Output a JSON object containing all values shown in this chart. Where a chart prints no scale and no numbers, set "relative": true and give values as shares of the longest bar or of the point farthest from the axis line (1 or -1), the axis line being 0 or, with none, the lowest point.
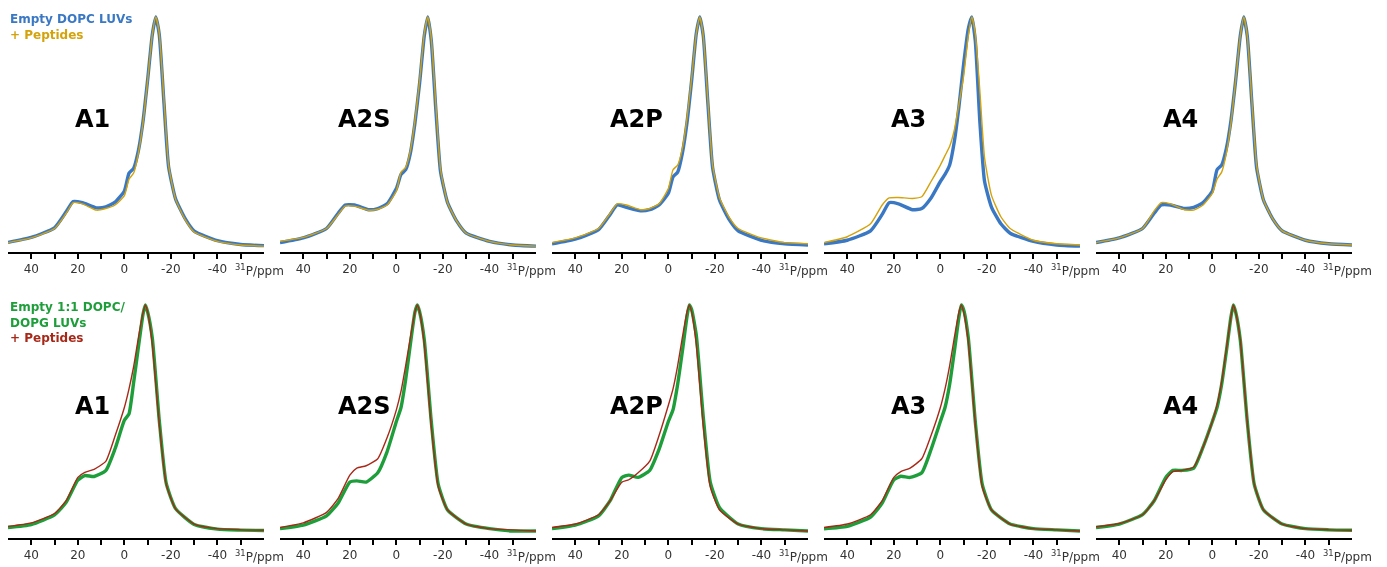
{
  "chart_data": [
    {
      "type": "line",
      "relative": true,
      "title": "A1",
      "xlabel": "$^{31}$P/ppm",
      "legend": "top left",
      "tick_labels": "x",
      "xlim": [
        50,
        -60
      ],
      "xticks": [
        40,
        {
          "value": 30,
          "label": null
        },
        20,
        {
          "value": 10,
          "label": null
        },
        0,
        {
          "value": -10,
          "label": null
        },
        -20,
        {
          "value": -30,
          "label": null
        },
        -40,
        {
          "value": -50,
          "label": null
        }
      ],
      "x": [
        50,
        40,
        30,
        25,
        22,
        18,
        12,
        8,
        4,
        0,
        -2,
        -4,
        -6,
        -8,
        -10,
        -12,
        -13.5,
        -15,
        -17,
        -19,
        -22,
        -26,
        -30,
        -40,
        -50,
        -60
      ],
      "series": [
        {
          "name": "Empty DOPC LUVs",
          "color": "#3a78c4",
          "values": [
            0.041,
            0.062,
            0.103,
            0.171,
            0.215,
            0.21,
            0.188,
            0.192,
            0.212,
            0.26,
            0.336,
            0.356,
            0.43,
            0.555,
            0.733,
            0.925,
            1.0,
            0.925,
            0.637,
            0.363,
            0.226,
            0.144,
            0.089,
            0.048,
            0.032,
            0.027
          ]
        },
        {
          "name": "+ Peptides",
          "color": "#d4a20a",
          "values": [
            0.04,
            0.06,
            0.1,
            0.165,
            0.21,
            0.205,
            0.178,
            0.185,
            0.2,
            0.24,
            0.31,
            0.336,
            0.42,
            0.55,
            0.73,
            0.925,
            1.0,
            0.93,
            0.65,
            0.37,
            0.225,
            0.14,
            0.085,
            0.045,
            0.03,
            0.025
          ]
        }
      ]
    },
    {
      "type": "line",
      "relative": true,
      "title": "A2S",
      "xlabel": "$^{31}$P/ppm",
      "tick_labels": "x",
      "xlim": [
        50,
        -60
      ],
      "xticks": [
        40,
        {
          "value": 30,
          "label": null
        },
        20,
        {
          "value": 10,
          "label": null
        },
        0,
        {
          "value": -10,
          "label": null
        },
        -20,
        {
          "value": -30,
          "label": null
        },
        -40,
        {
          "value": -50,
          "label": null
        }
      ],
      "x": [
        50,
        40,
        30,
        25,
        22,
        18,
        12,
        8,
        4,
        0,
        -2,
        -4,
        -6,
        -8,
        -10,
        -12,
        -13.5,
        -15,
        -17,
        -19,
        -22,
        -26,
        -30,
        -40,
        -50,
        -60
      ],
      "series": [
        {
          "color": "#3a78c4",
          "values": [
            0.04,
            0.06,
            0.1,
            0.165,
            0.2,
            0.2,
            0.18,
            0.185,
            0.205,
            0.27,
            0.33,
            0.35,
            0.42,
            0.55,
            0.72,
            0.92,
            1.0,
            0.9,
            0.6,
            0.34,
            0.21,
            0.13,
            0.08,
            0.045,
            0.03,
            0.025
          ]
        },
        {
          "color": "#d4a20a",
          "values": [
            0.045,
            0.062,
            0.1,
            0.16,
            0.195,
            0.195,
            0.178,
            0.182,
            0.2,
            0.26,
            0.34,
            0.36,
            0.43,
            0.56,
            0.73,
            0.93,
            1.0,
            0.91,
            0.62,
            0.35,
            0.21,
            0.13,
            0.08,
            0.045,
            0.03,
            0.025
          ]
        }
      ]
    },
    {
      "type": "line",
      "relative": true,
      "title": "A2P",
      "xlabel": "$^{31}$P/ppm",
      "tick_labels": "x",
      "xlim": [
        50,
        -60
      ],
      "xticks": [
        40,
        {
          "value": 30,
          "label": null
        },
        20,
        {
          "value": 10,
          "label": null
        },
        0,
        {
          "value": -10,
          "label": null
        },
        -20,
        {
          "value": -30,
          "label": null
        },
        -40,
        {
          "value": -50,
          "label": null
        }
      ],
      "x": [
        50,
        40,
        30,
        25,
        22,
        18,
        12,
        8,
        4,
        0,
        -2,
        -4,
        -6,
        -8,
        -10,
        -12,
        -13.5,
        -15,
        -17,
        -19,
        -22,
        -26,
        -30,
        -40,
        -50,
        -60
      ],
      "series": [
        {
          "color": "#3a78c4",
          "values": [
            0.035,
            0.055,
            0.095,
            0.16,
            0.2,
            0.19,
            0.175,
            0.18,
            0.2,
            0.25,
            0.32,
            0.34,
            0.42,
            0.55,
            0.73,
            0.93,
            1.0,
            0.92,
            0.63,
            0.36,
            0.22,
            0.14,
            0.09,
            0.05,
            0.035,
            0.03
          ]
        },
        {
          "color": "#d4a20a",
          "values": [
            0.04,
            0.06,
            0.1,
            0.165,
            0.205,
            0.2,
            0.18,
            0.185,
            0.205,
            0.27,
            0.35,
            0.37,
            0.44,
            0.57,
            0.74,
            0.93,
            1.0,
            0.92,
            0.64,
            0.37,
            0.23,
            0.15,
            0.1,
            0.06,
            0.04,
            0.035
          ]
        }
      ]
    },
    {
      "type": "line",
      "relative": true,
      "title": "A3",
      "xlabel": "$^{31}$P/ppm",
      "tick_labels": "x",
      "xlim": [
        50,
        -60
      ],
      "xticks": [
        40,
        {
          "value": 30,
          "label": null
        },
        20,
        {
          "value": 10,
          "label": null
        },
        0,
        {
          "value": -10,
          "label": null
        },
        -20,
        {
          "value": -30,
          "label": null
        },
        -40,
        {
          "value": -50,
          "label": null
        }
      ],
      "x": [
        50,
        40,
        30,
        25,
        22,
        18,
        12,
        8,
        4,
        0,
        -2,
        -4,
        -6,
        -8,
        -10,
        -12,
        -13.5,
        -15,
        -17,
        -19,
        -22,
        -26,
        -30,
        -40,
        -50,
        -60
      ],
      "series": [
        {
          "color": "#3a78c4",
          "values": [
            0.035,
            0.05,
            0.09,
            0.16,
            0.21,
            0.205,
            0.18,
            0.185,
            0.23,
            0.3,
            0.33,
            0.37,
            0.47,
            0.62,
            0.8,
            0.95,
            1.0,
            0.9,
            0.55,
            0.3,
            0.19,
            0.12,
            0.08,
            0.045,
            0.03,
            0.025
          ]
        },
        {
          "color": "#d4a20a",
          "values": [
            0.04,
            0.065,
            0.12,
            0.2,
            0.23,
            0.232,
            0.228,
            0.235,
            0.3,
            0.37,
            0.41,
            0.45,
            0.52,
            0.63,
            0.75,
            0.92,
            1.0,
            0.93,
            0.68,
            0.4,
            0.24,
            0.15,
            0.1,
            0.05,
            0.035,
            0.03
          ]
        }
      ]
    },
    {
      "type": "line",
      "relative": true,
      "title": "A4",
      "xlabel": "$^{31}$P/ppm",
      "tick_labels": "x",
      "xlim": [
        50,
        -60
      ],
      "xticks": [
        40,
        {
          "value": 30,
          "label": null
        },
        20,
        {
          "value": 10,
          "label": null
        },
        0,
        {
          "value": -10,
          "label": null
        },
        -20,
        {
          "value": -30,
          "label": null
        },
        -40,
        {
          "value": -50,
          "label": null
        }
      ],
      "x": [
        50,
        40,
        30,
        25,
        22,
        18,
        12,
        8,
        4,
        0,
        -2,
        -4,
        -6,
        -8,
        -10,
        -12,
        -13.5,
        -15,
        -17,
        -19,
        -22,
        -26,
        -30,
        -40,
        -50,
        -60
      ],
      "series": [
        {
          "color": "#3a78c4",
          "values": [
            0.04,
            0.06,
            0.1,
            0.165,
            0.2,
            0.2,
            0.185,
            0.19,
            0.21,
            0.26,
            0.35,
            0.37,
            0.44,
            0.56,
            0.73,
            0.92,
            1.0,
            0.92,
            0.63,
            0.36,
            0.22,
            0.14,
            0.09,
            0.05,
            0.035,
            0.03
          ]
        },
        {
          "color": "#d4a20a",
          "values": [
            0.04,
            0.06,
            0.1,
            0.175,
            0.21,
            0.205,
            0.18,
            0.178,
            0.2,
            0.25,
            0.31,
            0.34,
            0.42,
            0.55,
            0.73,
            0.92,
            1.0,
            0.92,
            0.64,
            0.37,
            0.22,
            0.14,
            0.09,
            0.05,
            0.035,
            0.03
          ]
        }
      ]
    },
    {
      "type": "line",
      "relative": true,
      "title": "A1",
      "xlabel": "$^{31}$P/ppm",
      "legend": "top left",
      "tick_labels": "x",
      "xlim": [
        50,
        -60
      ],
      "xticks": [
        40,
        {
          "value": 30,
          "label": null
        },
        20,
        {
          "value": 10,
          "label": null
        },
        0,
        {
          "value": -10,
          "label": null
        },
        -20,
        {
          "value": -30,
          "label": null
        },
        -40,
        {
          "value": -50,
          "label": null
        }
      ],
      "x": [
        50,
        40,
        30,
        25,
        20,
        17,
        13,
        8,
        4,
        0,
        -2,
        -4,
        -6,
        -8,
        -9,
        -10,
        -12,
        -15,
        -18,
        -22,
        -30,
        -40,
        -50,
        -60
      ],
      "series": [
        {
          "name": "Empty 1:1 DOPC/DOPG LUVs",
          "color": "#1e9e3a",
          "values": [
            0.045,
            0.058,
            0.099,
            0.153,
            0.248,
            0.268,
            0.264,
            0.289,
            0.383,
            0.505,
            0.533,
            0.668,
            0.817,
            0.96,
            1.0,
            0.97,
            0.858,
            0.505,
            0.234,
            0.126,
            0.058,
            0.038,
            0.034,
            0.032
          ]
        },
        {
          "name": "+ Peptides",
          "color": "#a82818",
          "values": [
            0.05,
            0.065,
            0.105,
            0.16,
            0.26,
            0.282,
            0.295,
            0.329,
            0.438,
            0.56,
            0.64,
            0.736,
            0.858,
            0.966,
            1.0,
            0.97,
            0.83,
            0.49,
            0.23,
            0.125,
            0.06,
            0.04,
            0.035,
            0.033
          ]
        }
      ]
    },
    {
      "type": "line",
      "relative": true,
      "title": "A2S",
      "xlabel": "$^{31}$P/ppm",
      "tick_labels": "x",
      "xlim": [
        50,
        -60
      ],
      "xticks": [
        40,
        {
          "value": 30,
          "label": null
        },
        20,
        {
          "value": 10,
          "label": null
        },
        0,
        {
          "value": -10,
          "label": null
        },
        -20,
        {
          "value": -30,
          "label": null
        },
        -40,
        {
          "value": -50,
          "label": null
        }
      ],
      "x": [
        50,
        40,
        30,
        25,
        20,
        17,
        13,
        8,
        4,
        0,
        -2,
        -4,
        -6,
        -8,
        -9,
        -10,
        -12,
        -15,
        -18,
        -22,
        -30,
        -40,
        -50,
        -60
      ],
      "series": [
        {
          "color": "#1e9e3a",
          "values": [
            0.04,
            0.055,
            0.095,
            0.15,
            0.24,
            0.245,
            0.24,
            0.28,
            0.37,
            0.5,
            0.56,
            0.68,
            0.83,
            0.97,
            1.0,
            0.97,
            0.85,
            0.5,
            0.23,
            0.12,
            0.06,
            0.04,
            0.03,
            0.03
          ]
        },
        {
          "color": "#a82818",
          "values": [
            0.045,
            0.065,
            0.11,
            0.17,
            0.27,
            0.3,
            0.31,
            0.34,
            0.43,
            0.55,
            0.63,
            0.74,
            0.86,
            0.97,
            1.0,
            0.97,
            0.83,
            0.48,
            0.22,
            0.12,
            0.06,
            0.04,
            0.035,
            0.03
          ]
        }
      ]
    },
    {
      "type": "line",
      "relative": true,
      "title": "A2P",
      "xlabel": "$^{31}$P/ppm",
      "tick_labels": "x",
      "xlim": [
        50,
        -60
      ],
      "xticks": [
        40,
        {
          "value": 30,
          "label": null
        },
        20,
        {
          "value": 10,
          "label": null
        },
        0,
        {
          "value": -10,
          "label": null
        },
        -20,
        {
          "value": -30,
          "label": null
        },
        -40,
        {
          "value": -50,
          "label": null
        }
      ],
      "x": [
        50,
        40,
        30,
        25,
        20,
        17,
        13,
        8,
        4,
        0,
        -2,
        -4,
        -6,
        -8,
        -9,
        -10,
        -12,
        -15,
        -18,
        -22,
        -30,
        -40,
        -50,
        -60
      ],
      "series": [
        {
          "color": "#1e9e3a",
          "values": [
            0.04,
            0.055,
            0.095,
            0.16,
            0.26,
            0.27,
            0.26,
            0.29,
            0.38,
            0.5,
            0.55,
            0.66,
            0.8,
            0.95,
            1.0,
            0.98,
            0.87,
            0.52,
            0.24,
            0.13,
            0.06,
            0.04,
            0.035,
            0.03
          ]
        },
        {
          "color": "#a82818",
          "values": [
            0.045,
            0.06,
            0.1,
            0.16,
            0.24,
            0.25,
            0.28,
            0.33,
            0.44,
            0.57,
            0.64,
            0.74,
            0.86,
            0.97,
            1.0,
            0.97,
            0.83,
            0.48,
            0.22,
            0.12,
            0.06,
            0.04,
            0.035,
            0.03
          ]
        }
      ]
    },
    {
      "type": "line",
      "relative": true,
      "title": "A3",
      "xlabel": "$^{31}$P/ppm",
      "tick_labels": "x",
      "xlim": [
        50,
        -60
      ],
      "xticks": [
        40,
        {
          "value": 30,
          "label": null
        },
        20,
        {
          "value": 10,
          "label": null
        },
        0,
        {
          "value": -10,
          "label": null
        },
        -20,
        {
          "value": -30,
          "label": null
        },
        -40,
        {
          "value": -50,
          "label": null
        }
      ],
      "x": [
        50,
        40,
        30,
        25,
        20,
        17,
        13,
        8,
        4,
        0,
        -2,
        -4,
        -6,
        -8,
        -9,
        -10,
        -12,
        -15,
        -18,
        -22,
        -30,
        -40,
        -50,
        -60
      ],
      "series": [
        {
          "color": "#1e9e3a",
          "values": [
            0.04,
            0.05,
            0.09,
            0.15,
            0.25,
            0.265,
            0.26,
            0.28,
            0.38,
            0.5,
            0.56,
            0.66,
            0.8,
            0.95,
            1.0,
            0.98,
            0.86,
            0.5,
            0.23,
            0.12,
            0.06,
            0.04,
            0.035,
            0.03
          ]
        },
        {
          "color": "#a82818",
          "values": [
            0.045,
            0.06,
            0.1,
            0.16,
            0.26,
            0.285,
            0.3,
            0.34,
            0.44,
            0.56,
            0.64,
            0.74,
            0.86,
            0.97,
            1.0,
            0.97,
            0.84,
            0.49,
            0.22,
            0.12,
            0.06,
            0.04,
            0.035,
            0.03
          ]
        }
      ]
    },
    {
      "type": "line",
      "relative": true,
      "title": "A4",
      "xlabel": "$^{31}$P/ppm",
      "tick_labels": "x",
      "xlim": [
        50,
        -60
      ],
      "xticks": [
        40,
        {
          "value": 30,
          "label": null
        },
        20,
        {
          "value": 10,
          "label": null
        },
        0,
        {
          "value": -10,
          "label": null
        },
        -20,
        {
          "value": -30,
          "label": null
        },
        -40,
        {
          "value": -50,
          "label": null
        }
      ],
      "x": [
        50,
        40,
        30,
        25,
        20,
        17,
        13,
        8,
        4,
        0,
        -2,
        -4,
        -6,
        -8,
        -9,
        -10,
        -12,
        -15,
        -18,
        -22,
        -30,
        -40,
        -50,
        -60
      ],
      "series": [
        {
          "color": "#1e9e3a",
          "values": [
            0.045,
            0.06,
            0.1,
            0.16,
            0.26,
            0.29,
            0.29,
            0.3,
            0.39,
            0.5,
            0.56,
            0.66,
            0.8,
            0.95,
            1.0,
            0.97,
            0.85,
            0.5,
            0.23,
            0.12,
            0.06,
            0.04,
            0.035,
            0.033
          ]
        },
        {
          "color": "#a82818",
          "values": [
            0.048,
            0.062,
            0.1,
            0.16,
            0.25,
            0.285,
            0.29,
            0.305,
            0.39,
            0.5,
            0.57,
            0.67,
            0.81,
            0.95,
            1.0,
            0.97,
            0.85,
            0.5,
            0.23,
            0.12,
            0.06,
            0.04,
            0.035,
            0.033
          ]
        }
      ]
    }
  ]
}
